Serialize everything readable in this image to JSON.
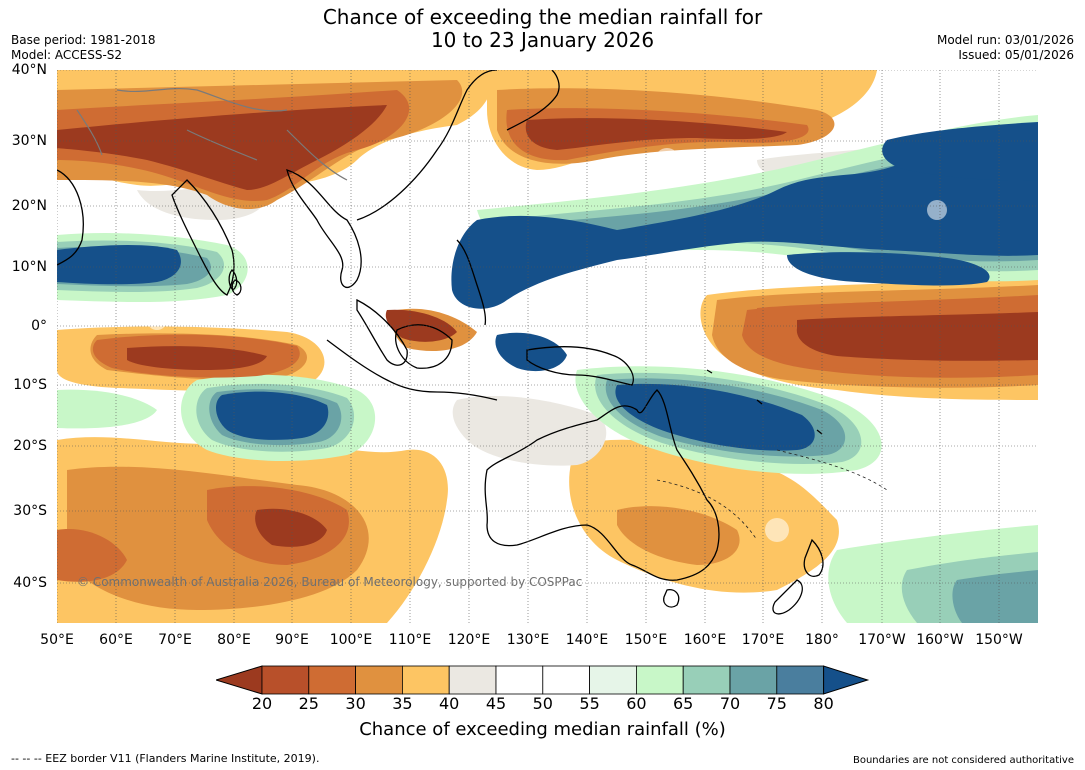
{
  "title": {
    "line1": "Chance of exceeding the median rainfall for",
    "line2": "10 to 23 January 2026"
  },
  "meta": {
    "base_period": "Base period: 1981-2018",
    "model": "Model: ACCESS-S2",
    "model_run": "Model run: 03/01/2026",
    "issued": "Issued: 05/01/2026"
  },
  "map": {
    "lat_labels": [
      "40°N",
      "30°N",
      "20°N",
      "10°N",
      "0°",
      "10°S",
      "20°S",
      "30°S",
      "40°S"
    ],
    "lon_labels": [
      "50°E",
      "60°E",
      "70°E",
      "80°E",
      "90°E",
      "100°E",
      "110°E",
      "120°E",
      "130°E",
      "140°E",
      "150°E",
      "160°E",
      "170°E",
      "180°",
      "170°W",
      "160°W",
      "150°W"
    ],
    "copyright": "© Commonwealth of Australia 2026, Bureau of Meteorology, supported by COSPPac"
  },
  "colorbar": {
    "ticks": [
      "20",
      "25",
      "30",
      "35",
      "40",
      "45",
      "50",
      "55",
      "60",
      "65",
      "70",
      "75",
      "80"
    ],
    "colors": [
      "#9c3a1f",
      "#b8502a",
      "#cf6c33",
      "#e0913f",
      "#fdc563",
      "#ebe8e2",
      "#ffffff",
      "#ffffff",
      "#e6f5e8",
      "#c8f7c8",
      "#98cfb8",
      "#6aa3a6",
      "#4a7e9e",
      "#15508a"
    ],
    "label": "Chance of exceeding median rainfall (%)"
  },
  "footer": {
    "eez": "--  --  -- EEZ border V11 (Flanders Marine Institute, 2019).",
    "boundaries": "Boundaries are not considered authoritative"
  }
}
